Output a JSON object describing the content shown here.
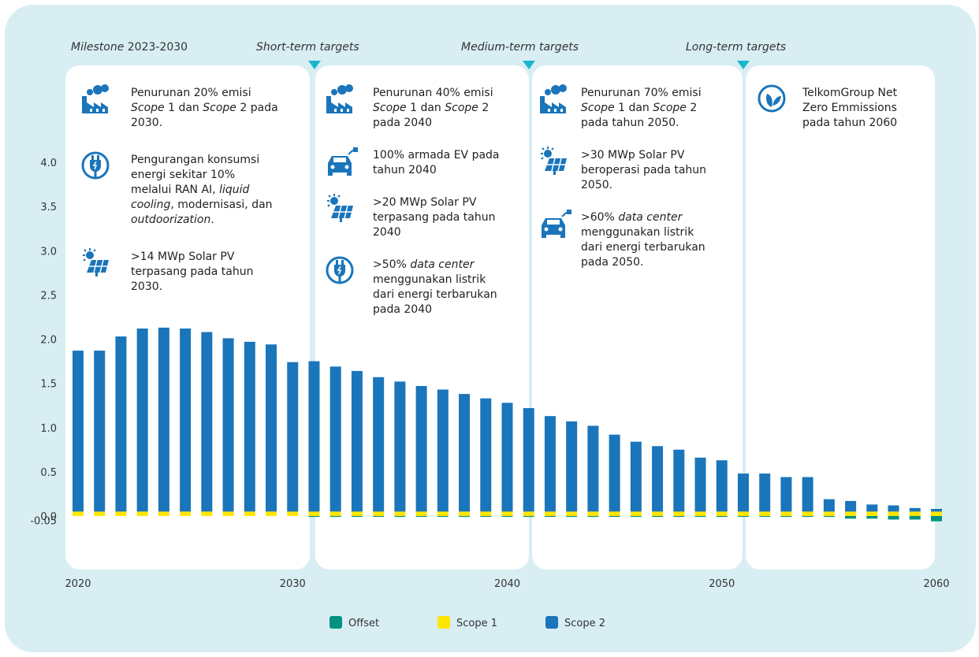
{
  "chart_data": {
    "type": "bar",
    "stacked": true,
    "x": [
      2020,
      2021,
      2022,
      2023,
      2024,
      2025,
      2026,
      2027,
      2028,
      2029,
      2030,
      2031,
      2032,
      2033,
      2034,
      2035,
      2036,
      2037,
      2038,
      2039,
      2040,
      2041,
      2042,
      2043,
      2044,
      2045,
      2046,
      2047,
      2048,
      2049,
      2050,
      2051,
      2052,
      2053,
      2054,
      2055,
      2056,
      2057,
      2058,
      2059,
      2060
    ],
    "series": [
      {
        "name": "Offset",
        "color": "#00927f",
        "values": [
          0,
          0,
          0,
          0,
          0,
          0,
          0,
          0,
          0,
          0,
          0,
          -0.01,
          -0.01,
          -0.01,
          -0.01,
          -0.01,
          -0.01,
          -0.01,
          -0.01,
          -0.01,
          -0.01,
          -0.01,
          -0.01,
          -0.01,
          -0.01,
          -0.01,
          -0.01,
          -0.01,
          -0.01,
          -0.01,
          -0.01,
          -0.01,
          -0.01,
          -0.01,
          -0.01,
          -0.01,
          -0.03,
          -0.03,
          -0.04,
          -0.04,
          -0.06
        ]
      },
      {
        "name": "Scope 1",
        "color": "#ffe600",
        "values": [
          0.05,
          0.05,
          0.05,
          0.05,
          0.05,
          0.05,
          0.05,
          0.05,
          0.05,
          0.05,
          0.05,
          0.05,
          0.05,
          0.05,
          0.05,
          0.05,
          0.05,
          0.05,
          0.05,
          0.05,
          0.05,
          0.05,
          0.05,
          0.05,
          0.05,
          0.05,
          0.05,
          0.05,
          0.05,
          0.05,
          0.05,
          0.05,
          0.05,
          0.05,
          0.05,
          0.05,
          0.05,
          0.05,
          0.05,
          0.05,
          0.05
        ]
      },
      {
        "name": "Scope 2",
        "color": "#1a75bb",
        "values": [
          1.82,
          1.82,
          1.98,
          2.07,
          2.08,
          2.07,
          2.03,
          1.96,
          1.92,
          1.89,
          1.69,
          1.7,
          1.64,
          1.59,
          1.52,
          1.47,
          1.42,
          1.38,
          1.33,
          1.28,
          1.23,
          1.17,
          1.08,
          1.02,
          0.97,
          0.87,
          0.79,
          0.74,
          0.7,
          0.61,
          0.58,
          0.43,
          0.43,
          0.39,
          0.39,
          0.14,
          0.12,
          0.08,
          0.07,
          0.04,
          0.03
        ]
      }
    ],
    "xlim": [
      2020,
      2060
    ],
    "xticks": [
      2020,
      2030,
      2040,
      2050,
      2060
    ],
    "ylim": [
      -0.5,
      4.0
    ],
    "yticks": [
      {
        "value": 4,
        "label": "4.0"
      },
      3.5,
      {
        "value": 3,
        "label": "3.0"
      },
      2.5,
      {
        "value": 2,
        "label": "2.0"
      },
      1.5,
      {
        "value": 1,
        "label": "1.0"
      },
      0.5,
      {
        "value": 0,
        "label": "0.0"
      },
      -0.05
    ],
    "headings": [
      [
        {
          "text": "Milestone",
          "italic": true
        },
        " 2023-2030"
      ],
      [
        {
          "text": "Short-term targets",
          "italic": true
        }
      ],
      [
        {
          "text": "Medium-term targets",
          "italic": true
        }
      ],
      [
        {
          "text": "Long-term targets",
          "italic": true
        }
      ]
    ],
    "panels": [
      [
        [
          [
            "Penurunan 20% emisi"
          ],
          [
            {
              "text": "Scope",
              "italic": true
            },
            " 1 dan ",
            {
              "text": "Scope",
              "italic": true
            },
            " 2 pada"
          ],
          [
            "2030."
          ]
        ],
        [
          [
            "Pengurangan konsumsi"
          ],
          [
            "energi sekitar 10%"
          ],
          [
            "melalui RAN AI, ",
            {
              "text": "liquid",
              "italic": true
            }
          ],
          [
            {
              "text": "cooling",
              "italic": true
            },
            ", modernisasi, dan"
          ],
          [
            {
              "text": "outdoorization",
              "italic": true
            },
            "."
          ]
        ],
        [
          [
            ">14 MWp Solar PV"
          ],
          [
            "terpasang pada tahun"
          ],
          [
            "2030."
          ]
        ]
      ],
      [
        [
          [
            "Penurunan 40% emisi"
          ],
          [
            {
              "text": "Scope",
              "italic": true
            },
            " 1 dan ",
            {
              "text": "Scope",
              "italic": true
            },
            " 2"
          ],
          [
            "pada 2040"
          ]
        ],
        [
          [
            "100% armada EV pada"
          ],
          [
            "tahun 2040"
          ]
        ],
        [
          [
            ">20 MWp Solar PV"
          ],
          [
            "terpasang pada tahun"
          ],
          [
            "2040"
          ]
        ],
        [
          [
            ">50% ",
            {
              "text": "data center",
              "italic": true
            }
          ],
          [
            "menggunakan listrik"
          ],
          [
            "dari energi terbarukan"
          ],
          [
            "pada 2040"
          ]
        ]
      ],
      [
        [
          [
            "Penurunan 70% emisi"
          ],
          [
            {
              "text": "Scope",
              "italic": true
            },
            " 1 dan ",
            {
              "text": "Scope",
              "italic": true
            },
            " 2"
          ],
          [
            "pada tahun 2050."
          ]
        ],
        [
          [
            ">30 MWp Solar PV"
          ],
          [
            "beroperasi pada tahun"
          ],
          [
            "2050."
          ]
        ],
        [
          [
            ">60% ",
            {
              "text": "data center",
              "italic": true
            }
          ],
          [
            "menggunakan listrik"
          ],
          [
            "dari energi terbarukan"
          ],
          [
            "pada 2050."
          ]
        ]
      ],
      [
        [
          [
            "TelkomGroup Net"
          ],
          [
            "Zero Emmissions"
          ],
          [
            "pada tahun 2060"
          ]
        ]
      ]
    ]
  }
}
